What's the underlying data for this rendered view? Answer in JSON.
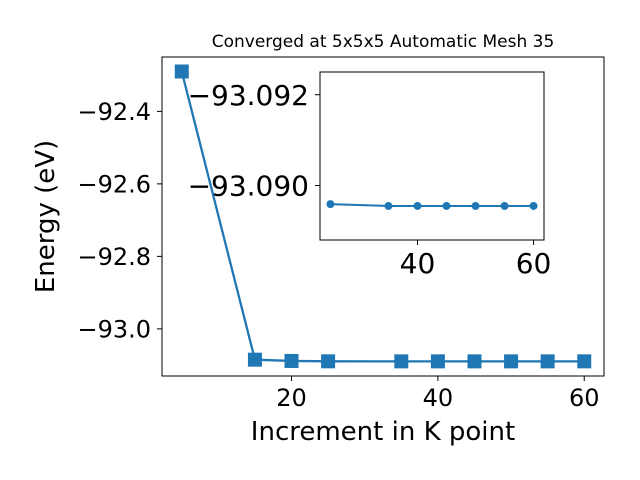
{
  "chart_data": [
    {
      "type": "line",
      "title": "Converged at 5x5x5 Automatic Mesh 35",
      "xlabel": "Increment in K point",
      "ylabel": "Energy (eV)",
      "marker": "square",
      "color": "#1f77b4",
      "x": [
        5,
        15,
        20,
        25,
        35,
        40,
        45,
        50,
        55,
        60
      ],
      "y": [
        -92.29,
        -93.085,
        -93.0885,
        -93.0895,
        -93.0896,
        -93.0896,
        -93.0896,
        -93.0896,
        -93.0896,
        -93.0896
      ],
      "xlim": [
        2.3,
        62.7
      ],
      "ylim": [
        -93.13,
        -92.25
      ],
      "xticks": [
        20,
        40,
        60
      ],
      "xtick_labels": [
        "20",
        "40",
        "60"
      ],
      "yticks": [
        -93.0,
        -92.8,
        -92.6,
        -92.4
      ],
      "ytick_labels": [
        "−93.0",
        "−92.8",
        "−92.6",
        "−92.4"
      ],
      "grid": false
    },
    {
      "type": "line",
      "title": "",
      "xlabel": "",
      "ylabel": "",
      "marker": "circle",
      "color": "#1f77b4",
      "x": [
        25,
        35,
        40,
        45,
        50,
        55,
        60
      ],
      "y": [
        -93.08959,
        -93.08955,
        -93.08955,
        -93.08955,
        -93.08955,
        -93.08955,
        -93.08955
      ],
      "xlim": [
        23.2,
        61.8
      ],
      "ylim": [
        -93.0888,
        -93.0925
      ],
      "xticks": [
        40,
        60
      ],
      "xtick_labels": [
        "40",
        "60"
      ],
      "yticks": [
        -93.092,
        -93.09
      ],
      "ytick_labels": [
        "−93.092",
        "−93.090"
      ],
      "grid": false
    }
  ]
}
